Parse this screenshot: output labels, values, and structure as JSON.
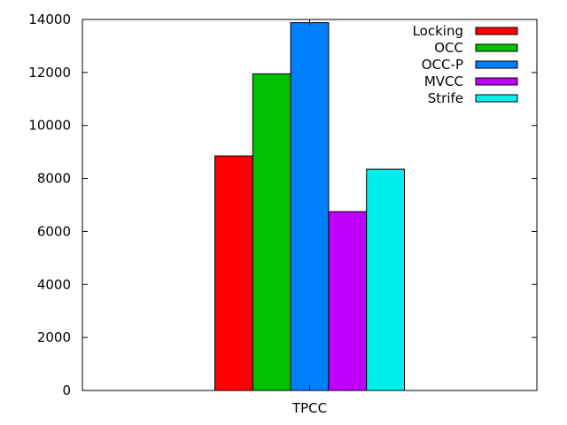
{
  "chart_data": {
    "type": "bar",
    "categories": [
      "TPCC"
    ],
    "series": [
      {
        "name": "Locking",
        "values": [
          8850
        ],
        "color": "#ff0000"
      },
      {
        "name": "OCC",
        "values": [
          11950
        ],
        "color": "#00c000"
      },
      {
        "name": "OCC-P",
        "values": [
          13880
        ],
        "color": "#0080ff"
      },
      {
        "name": "MVCC",
        "values": [
          6750
        ],
        "color": "#c000ff"
      },
      {
        "name": "Strife",
        "values": [
          8350
        ],
        "color": "#00eeee"
      }
    ],
    "ylim": [
      0,
      14000
    ],
    "yticks": [
      "0",
      "2000",
      "4000",
      "6000",
      "8000",
      "10000",
      "12000",
      "14000"
    ],
    "legend_position": "top-right",
    "grid": false
  }
}
